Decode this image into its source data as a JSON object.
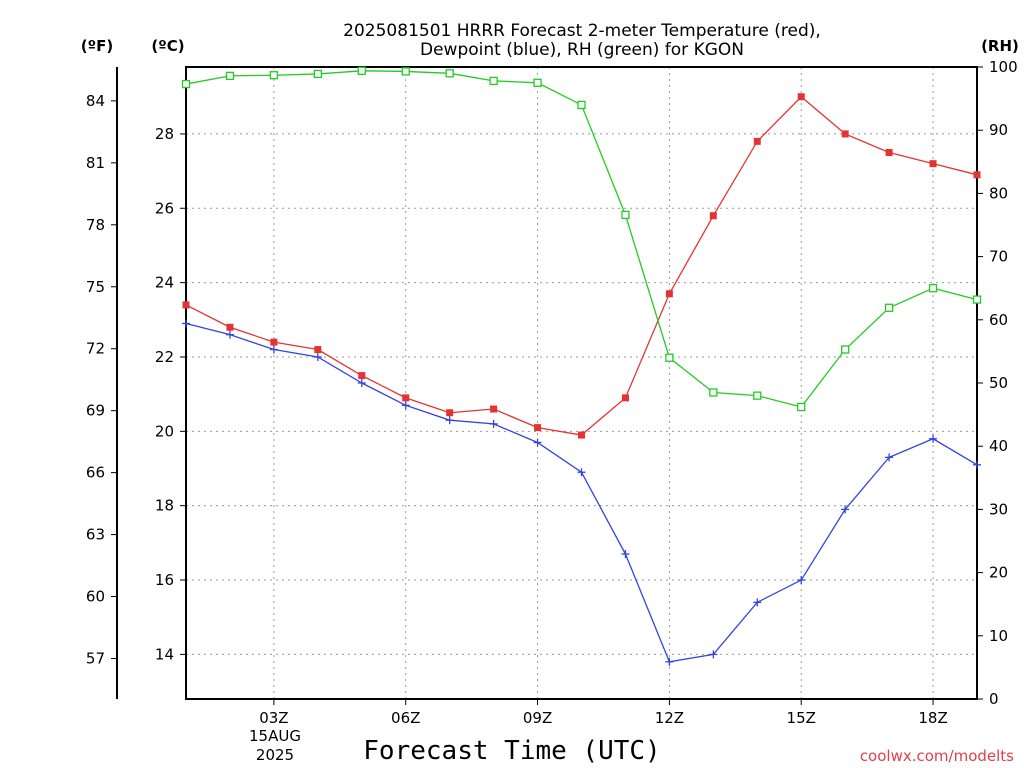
{
  "chart_data": {
    "type": "line",
    "title_line1": "2025081501 HRRR Forecast 2-meter Temperature (red),",
    "title_line2": "Dewpoint (blue), RH (green) for KGON",
    "xlabel": "Forecast Time (UTC)",
    "date_label_day": "15AUG",
    "date_label_year": "2025",
    "credit": "coolwx.com/modelts",
    "axis_units": {
      "fahrenheit": "(ºF)",
      "celsius": "(ºC)",
      "rh": "(RH)"
    },
    "x_hours": [
      1,
      2,
      3,
      4,
      5,
      6,
      7,
      8,
      9,
      10,
      11,
      12,
      13,
      14,
      15,
      16,
      17,
      18,
      19
    ],
    "x_range": [
      1,
      19
    ],
    "x_ticks": [
      {
        "hour": 3,
        "label": "03Z"
      },
      {
        "hour": 6,
        "label": "06Z"
      },
      {
        "hour": 9,
        "label": "09Z"
      },
      {
        "hour": 12,
        "label": "12Z"
      },
      {
        "hour": 15,
        "label": "15Z"
      },
      {
        "hour": 18,
        "label": "18Z"
      }
    ],
    "celsius_range": [
      12.8,
      29.8
    ],
    "celsius_ticks": [
      14,
      16,
      18,
      20,
      22,
      24,
      26,
      28
    ],
    "fahrenheit_ticks": [
      57,
      60,
      63,
      66,
      69,
      72,
      75,
      78,
      81,
      84
    ],
    "rh_range": [
      0,
      100
    ],
    "rh_ticks": [
      0,
      10,
      20,
      30,
      40,
      50,
      60,
      70,
      80,
      90,
      100
    ],
    "grid": true,
    "series": [
      {
        "name": "Temperature",
        "axis": "celsius",
        "color": "#e53333",
        "marker": "filled-square",
        "values": [
          23.4,
          22.8,
          22.4,
          22.2,
          21.5,
          20.9,
          20.5,
          20.6,
          20.1,
          19.9,
          20.9,
          23.7,
          25.8,
          27.8,
          29.0,
          28.0,
          27.5,
          27.2,
          26.9
        ]
      },
      {
        "name": "Dewpoint",
        "axis": "celsius",
        "color": "#3344dd",
        "marker": "plus",
        "values": [
          22.9,
          22.6,
          22.2,
          22.0,
          21.3,
          20.7,
          20.3,
          20.2,
          19.7,
          18.9,
          16.7,
          13.8,
          14.0,
          15.4,
          16.0,
          17.9,
          19.3,
          19.8,
          19.1
        ]
      },
      {
        "name": "RH",
        "axis": "rh",
        "color": "#22cc22",
        "marker": "open-square",
        "values": [
          97.3,
          98.6,
          98.7,
          98.9,
          99.4,
          99.3,
          99.0,
          97.8,
          97.5,
          94.0,
          76.6,
          54.0,
          48.5,
          48.0,
          46.2,
          55.3,
          61.9,
          65.0,
          63.2
        ]
      }
    ]
  }
}
